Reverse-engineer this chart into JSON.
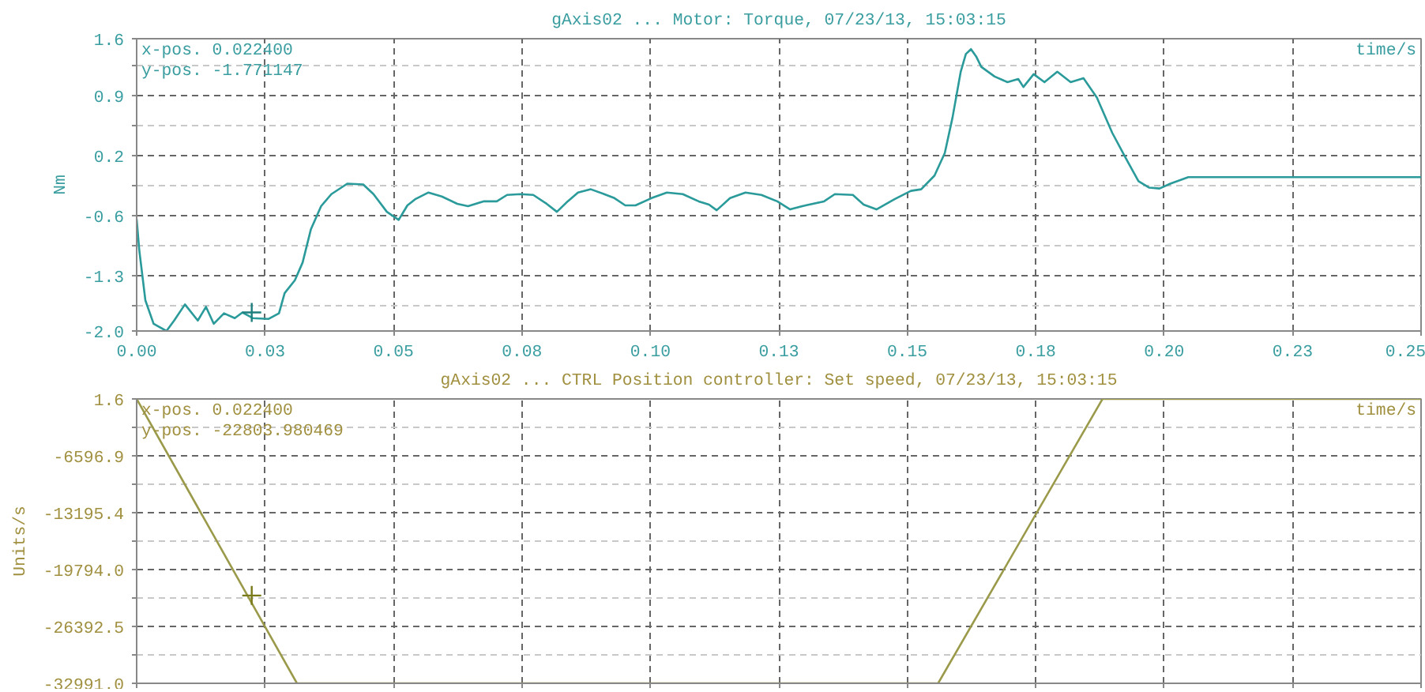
{
  "chart_data": [
    {
      "type": "line",
      "title": "gAxis02 ... Motor: Torque, 07/23/13, 15:03:15",
      "xlabel": "time/s",
      "ylabel": "Nm",
      "annotations": [
        "x-pos.   0.022400",
        "y-pos.  -1.771147"
      ],
      "xlim": [
        0,
        0.25
      ],
      "xticks": [
        {
          "value": 0,
          "label": "0.00"
        },
        {
          "value": 0.025,
          "label": "0.03"
        },
        {
          "value": 0.05,
          "label": "0.05"
        },
        {
          "value": 0.075,
          "label": "0.08"
        },
        {
          "value": 0.1,
          "label": "0.10"
        },
        {
          "value": 0.125,
          "label": "0.13"
        },
        {
          "value": 0.15,
          "label": "0.15"
        },
        {
          "value": 0.175,
          "label": "0.18"
        },
        {
          "value": 0.2,
          "label": "0.20"
        },
        {
          "value": 0.225,
          "label": "0.23"
        },
        {
          "value": 0.25,
          "label": "0.25"
        }
      ],
      "ylim": [
        -2.0,
        1.63
      ],
      "yticks": [
        {
          "value": 1.63,
          "label": "1.6"
        },
        {
          "value": 1.295,
          "label": null
        },
        {
          "value": 0.92,
          "label": "0.9"
        },
        {
          "value": 0.5475,
          "label": null
        },
        {
          "value": 0.175,
          "label": "0.2"
        },
        {
          "value": -0.1975,
          "label": null
        },
        {
          "value": -0.57,
          "label": "-0.6"
        },
        {
          "value": -0.9425,
          "label": null
        },
        {
          "value": -1.315,
          "label": "-1.3"
        },
        {
          "value": -1.6875,
          "label": null
        },
        {
          "value": -2.0,
          "label": "-2.0"
        }
      ],
      "grid": true,
      "line_style": "solid",
      "series": [
        {
          "color": "#2a9a9a",
          "x": [
            0,
            0.0005,
            0.0017,
            0.0033,
            0.0058,
            0.0073,
            0.0094,
            0.0119,
            0.0135,
            0.015,
            0.017,
            0.0191,
            0.0206,
            0.0226,
            0.0257,
            0.0277,
            0.0288,
            0.0308,
            0.0323,
            0.0339,
            0.0359,
            0.0379,
            0.041,
            0.0441,
            0.0461,
            0.0487,
            0.051,
            0.0527,
            0.0543,
            0.0568,
            0.0594,
            0.0624,
            0.0645,
            0.0675,
            0.0701,
            0.0721,
            0.0747,
            0.0772,
            0.0798,
            0.0818,
            0.0839,
            0.0859,
            0.0884,
            0.091,
            0.093,
            0.0951,
            0.0971,
            0.1002,
            0.1032,
            0.1063,
            0.1094,
            0.1114,
            0.1129,
            0.1155,
            0.1185,
            0.1216,
            0.1247,
            0.1272,
            0.1302,
            0.1338,
            0.1359,
            0.1394,
            0.1415,
            0.144,
            0.1476,
            0.1507,
            0.1527,
            0.1553,
            0.1573,
            0.1588,
            0.1604,
            0.1614,
            0.1624,
            0.1634,
            0.1644,
            0.167,
            0.1695,
            0.1716,
            0.1726,
            0.1746,
            0.1767,
            0.1792,
            0.1818,
            0.1843,
            0.1869,
            0.1899,
            0.1925,
            0.195,
            0.1971,
            0.1991,
            0.2012,
            0.2047,
            0.2093,
            0.25
          ],
          "values": [
            -0.61,
            -0.99,
            -1.62,
            -1.91,
            -2.0,
            -1.87,
            -1.67,
            -1.87,
            -1.7,
            -1.91,
            -1.78,
            -1.84,
            -1.77,
            -1.84,
            -1.85,
            -1.78,
            -1.53,
            -1.37,
            -1.15,
            -0.74,
            -0.45,
            -0.3,
            -0.17,
            -0.18,
            -0.3,
            -0.52,
            -0.62,
            -0.44,
            -0.36,
            -0.28,
            -0.33,
            -0.42,
            -0.45,
            -0.39,
            -0.39,
            -0.31,
            -0.3,
            -0.31,
            -0.42,
            -0.52,
            -0.39,
            -0.28,
            -0.24,
            -0.3,
            -0.35,
            -0.44,
            -0.44,
            -0.35,
            -0.28,
            -0.3,
            -0.39,
            -0.43,
            -0.5,
            -0.35,
            -0.28,
            -0.31,
            -0.39,
            -0.49,
            -0.44,
            -0.39,
            -0.3,
            -0.31,
            -0.43,
            -0.49,
            -0.36,
            -0.26,
            -0.24,
            -0.07,
            0.21,
            0.65,
            1.22,
            1.44,
            1.5,
            1.41,
            1.28,
            1.16,
            1.09,
            1.13,
            1.03,
            1.19,
            1.09,
            1.22,
            1.09,
            1.14,
            0.9,
            0.46,
            0.15,
            -0.14,
            -0.22,
            -0.23,
            -0.17,
            -0.09,
            -0.09,
            -0.09
          ]
        },
        {
          "type": "scatter",
          "marker": "cross",
          "color": "#1f7f7f",
          "x": [
            0.0224
          ],
          "values": [
            -1.77
          ]
        }
      ]
    },
    {
      "type": "line",
      "title": "gAxis02 ... CTRL Position controller: Set speed, 07/23/13, 15:03:15",
      "xlabel": "time/s",
      "ylabel": "Units/s",
      "annotations": [
        "x-pos.       0.022400",
        "y-pos.  -22803.980469"
      ],
      "xlim": [
        0,
        0.25
      ],
      "xticks": [
        0,
        0.025,
        0.05,
        0.075,
        0.1,
        0.125,
        0.15,
        0.175,
        0.2,
        0.225,
        0.25
      ],
      "ylim": [
        -32991.0,
        1.6
      ],
      "yticks": [
        {
          "value": 1.6,
          "label": "1.6"
        },
        {
          "value": -3297.65,
          "label": null
        },
        {
          "value": -6596.9,
          "label": "-6596.9"
        },
        {
          "value": -9896.15,
          "label": null
        },
        {
          "value": -13195.4,
          "label": "-13195.4"
        },
        {
          "value": -16494.7,
          "label": null
        },
        {
          "value": -19794.0,
          "label": "-19794.0"
        },
        {
          "value": -23093.25,
          "label": null
        },
        {
          "value": -26392.5,
          "label": "-26392.5"
        },
        {
          "value": -29691.75,
          "label": null
        },
        {
          "value": -32991.0,
          "label": "-32991.0"
        }
      ],
      "tick_labels": "y",
      "grid": true,
      "line_style": "solid",
      "series": [
        {
          "color": "#9a9a4a",
          "x": [
            0,
            0.0312,
            0.156,
            0.188,
            0.25
          ],
          "values": [
            1.6,
            -32991.0,
            -32991.0,
            1.6,
            1.6
          ]
        },
        {
          "type": "scatter",
          "marker": "cross",
          "color": "#7a7a1a",
          "x": [
            0.0224
          ],
          "values": [
            -22804
          ]
        }
      ]
    }
  ]
}
